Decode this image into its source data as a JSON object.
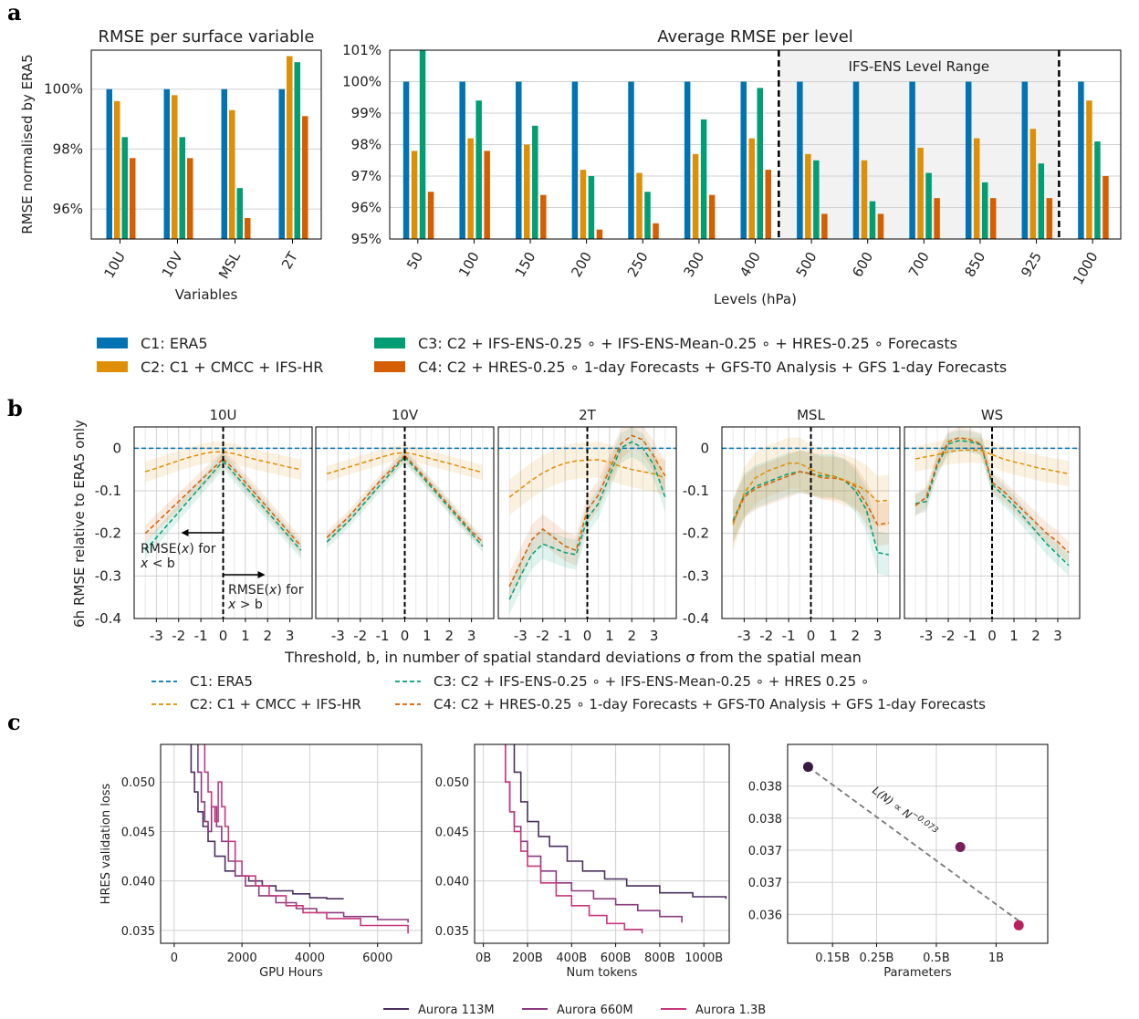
{
  "colors": {
    "C1": "#0173b2",
    "C2": "#de8f05",
    "C3": "#029e73",
    "C4": "#d55e00",
    "grid": "#d0d0d0",
    "band": "#f2f2f2",
    "a113": "#4a2f5e",
    "a660": "#8a3b7f",
    "a13": "#c7387c",
    "p1": "#3a1a45",
    "p2": "#7b1f5a",
    "p3": "#b8215d"
  },
  "panel_labels": {
    "a": "a",
    "b": "b",
    "c": "c"
  },
  "legend_a": [
    {
      "key": "C1",
      "label": "C1: ERA5"
    },
    {
      "key": "C2",
      "label": "C2: C1 + CMCC + IFS-HR"
    },
    {
      "key": "C3",
      "label": "C3: C2 + IFS-ENS-0.25 ∘ + IFS-ENS-Mean-0.25 ∘ + HRES-0.25 ∘ Forecasts"
    },
    {
      "key": "C4",
      "label": "C4: C2 + HRES-0.25 ∘ 1-day Forecasts + GFS-T0 Analysis + GFS 1-day Forecasts"
    }
  ],
  "legend_b": [
    {
      "key": "C1",
      "label": "C1: ERA5"
    },
    {
      "key": "C2",
      "label": "C2: C1 + CMCC + IFS-HR"
    },
    {
      "key": "C3",
      "label": "C3: C2 + IFS-ENS-0.25 ∘ + IFS-ENS-Mean-0.25 ∘ + HRES 0.25 ∘"
    },
    {
      "key": "C4",
      "label": "C4: C2 + HRES-0.25 ∘ 1-day Forecasts + GFS-T0 Analysis + GFS 1-day Forecasts"
    }
  ],
  "legend_c": [
    {
      "key": "a113",
      "label": "Aurora 113M"
    },
    {
      "key": "a660",
      "label": "Aurora 660M"
    },
    {
      "key": "a13",
      "label": "Aurora 1.3B"
    }
  ],
  "chart_data": [
    {
      "id": "a1",
      "type": "bar",
      "title": "RMSE per surface variable",
      "xlabel": "Variables",
      "ylabel": "RMSE normalised by ERA5",
      "categories": [
        "10U",
        "10V",
        "MSL",
        "2T"
      ],
      "ylim": [
        95,
        101.3
      ],
      "yticks": [
        96,
        98,
        100
      ],
      "ytick_labels": [
        "96%",
        "98%",
        "100%"
      ],
      "series": [
        {
          "name": "C1: ERA5",
          "key": "C1",
          "values": [
            100,
            100,
            100,
            100
          ]
        },
        {
          "name": "C2: C1 + CMCC + IFS-HR",
          "key": "C2",
          "values": [
            99.6,
            99.8,
            99.3,
            101.1
          ]
        },
        {
          "name": "C3",
          "key": "C3",
          "values": [
            98.4,
            98.4,
            96.7,
            100.9
          ]
        },
        {
          "name": "C4",
          "key": "C4",
          "values": [
            97.7,
            97.7,
            95.7,
            99.1
          ]
        }
      ]
    },
    {
      "id": "a2",
      "type": "bar",
      "title": "Average RMSE per level",
      "xlabel": "Levels (hPa)",
      "categories": [
        "50",
        "100",
        "150",
        "200",
        "250",
        "300",
        "400",
        "500",
        "600",
        "700",
        "850",
        "925",
        "1000"
      ],
      "ylim": [
        95,
        101
      ],
      "yticks": [
        95,
        96,
        97,
        98,
        99,
        100,
        101
      ],
      "ytick_labels": [
        "95%",
        "96%",
        "97%",
        "98%",
        "99%",
        "100%",
        "101%"
      ],
      "band": {
        "from_index": 7,
        "to_index": 11,
        "label": "IFS-ENS Level Range"
      },
      "series": [
        {
          "key": "C1",
          "values": [
            100,
            100,
            100,
            100,
            100,
            100,
            100,
            100,
            100,
            100,
            100,
            100,
            100
          ]
        },
        {
          "key": "C2",
          "values": [
            97.8,
            98.2,
            98.0,
            97.2,
            97.1,
            97.7,
            98.2,
            97.7,
            97.5,
            97.9,
            98.2,
            98.5,
            99.4
          ]
        },
        {
          "key": "C3",
          "values": [
            101.1,
            99.4,
            98.6,
            97.0,
            96.5,
            98.8,
            99.8,
            97.5,
            96.2,
            97.1,
            96.8,
            97.4,
            98.1
          ]
        },
        {
          "key": "C4",
          "values": [
            96.5,
            97.8,
            96.4,
            95.3,
            95.5,
            96.4,
            97.2,
            95.8,
            95.8,
            96.3,
            96.3,
            96.3,
            97.0
          ]
        }
      ]
    },
    {
      "id": "b",
      "type": "line",
      "ylabel": "6h RMSE relative to ERA5 only",
      "xlabel": "Threshold, b, in number of spatial standard deviations σ from the spatial mean",
      "x": [
        -3.5,
        -3,
        -2.5,
        -2,
        -1.5,
        -1,
        -0.5,
        0,
        0.5,
        1,
        1.5,
        2,
        2.5,
        3,
        3.5
      ],
      "xlim": [
        -4,
        4
      ],
      "xticks": [
        -3,
        -2,
        -1,
        0,
        1,
        2,
        3
      ],
      "xtick_labels": [
        "-3",
        "-2",
        "-1",
        "0",
        "1",
        "2",
        "3"
      ],
      "ylim": [
        -0.4,
        0.05
      ],
      "yticks": [
        0,
        -0.1,
        -0.2,
        -0.3,
        -0.4
      ],
      "ytick_labels": [
        "0",
        "-0.1",
        "-0.2",
        "-0.3",
        "-0.4"
      ],
      "annotations": {
        "left": [
          "RMSE(",
          "x",
          ") for",
          "x",
          " < b"
        ],
        "right": [
          "RMSE(",
          "x",
          ") for",
          "x",
          " > b"
        ]
      },
      "panels": [
        {
          "title": "10U",
          "C2": [
            -0.055,
            -0.047,
            -0.038,
            -0.029,
            -0.021,
            -0.014,
            -0.009,
            -0.008,
            -0.013,
            -0.02,
            -0.027,
            -0.033,
            -0.039,
            -0.045,
            -0.05
          ],
          "C3": [
            -0.24,
            -0.21,
            -0.18,
            -0.15,
            -0.12,
            -0.09,
            -0.06,
            -0.03,
            -0.06,
            -0.09,
            -0.12,
            -0.15,
            -0.18,
            -0.21,
            -0.24
          ],
          "C4": [
            -0.2,
            -0.175,
            -0.15,
            -0.125,
            -0.1,
            -0.075,
            -0.05,
            -0.025,
            -0.05,
            -0.08,
            -0.11,
            -0.14,
            -0.17,
            -0.2,
            -0.23
          ],
          "band_w": 0.02
        },
        {
          "title": "10V",
          "C2": [
            -0.06,
            -0.052,
            -0.044,
            -0.036,
            -0.028,
            -0.02,
            -0.013,
            -0.01,
            -0.015,
            -0.022,
            -0.029,
            -0.036,
            -0.043,
            -0.05,
            -0.057
          ],
          "C3": [
            -0.22,
            -0.195,
            -0.17,
            -0.14,
            -0.11,
            -0.08,
            -0.05,
            -0.02,
            -0.05,
            -0.08,
            -0.11,
            -0.14,
            -0.17,
            -0.2,
            -0.23
          ],
          "C4": [
            -0.21,
            -0.185,
            -0.16,
            -0.13,
            -0.1,
            -0.07,
            -0.045,
            -0.017,
            -0.045,
            -0.075,
            -0.105,
            -0.135,
            -0.165,
            -0.195,
            -0.22
          ],
          "band_w": 0.015
        },
        {
          "title": "2T",
          "C2": [
            -0.115,
            -0.095,
            -0.075,
            -0.058,
            -0.045,
            -0.035,
            -0.03,
            -0.028,
            -0.027,
            -0.033,
            -0.043,
            -0.05,
            -0.055,
            -0.06,
            -0.07
          ],
          "C3": [
            -0.355,
            -0.3,
            -0.25,
            -0.225,
            -0.235,
            -0.245,
            -0.25,
            -0.165,
            -0.13,
            -0.065,
            0.0,
            0.015,
            0.0,
            -0.04,
            -0.115
          ],
          "C4": [
            -0.325,
            -0.27,
            -0.215,
            -0.19,
            -0.21,
            -0.23,
            -0.24,
            -0.145,
            -0.11,
            -0.05,
            0.01,
            0.03,
            0.02,
            -0.02,
            -0.065
          ],
          "band_w": 0.035
        },
        {
          "title": "MSL",
          "C2": [
            -0.18,
            -0.105,
            -0.07,
            -0.055,
            -0.045,
            -0.035,
            -0.035,
            -0.05,
            -0.06,
            -0.065,
            -0.075,
            -0.085,
            -0.1,
            -0.125,
            -0.122
          ],
          "C3": [
            -0.17,
            -0.11,
            -0.09,
            -0.08,
            -0.07,
            -0.06,
            -0.055,
            -0.06,
            -0.065,
            -0.065,
            -0.075,
            -0.1,
            -0.145,
            -0.245,
            -0.25
          ],
          "C4": [
            -0.175,
            -0.115,
            -0.095,
            -0.085,
            -0.075,
            -0.065,
            -0.055,
            -0.06,
            -0.07,
            -0.07,
            -0.075,
            -0.09,
            -0.13,
            -0.18,
            -0.175
          ],
          "band_w": 0.05
        },
        {
          "title": "WS",
          "C2": [
            -0.025,
            -0.02,
            -0.015,
            -0.008,
            -0.005,
            -0.004,
            -0.005,
            -0.015,
            -0.025,
            -0.032,
            -0.038,
            -0.045,
            -0.05,
            -0.055,
            -0.06
          ],
          "C3": [
            -0.13,
            -0.125,
            -0.04,
            0.01,
            0.018,
            0.015,
            0.008,
            -0.085,
            -0.11,
            -0.135,
            -0.165,
            -0.195,
            -0.225,
            -0.25,
            -0.275
          ],
          "C4": [
            -0.135,
            -0.115,
            -0.035,
            0.015,
            0.025,
            0.02,
            0.01,
            -0.08,
            -0.1,
            -0.125,
            -0.15,
            -0.175,
            -0.2,
            -0.22,
            -0.245
          ],
          "band_w": 0.025
        }
      ]
    },
    {
      "id": "c1",
      "type": "line",
      "xlabel": "GPU Hours",
      "ylabel": "HRES validation loss",
      "xlim": [
        -400,
        7300
      ],
      "ylim": [
        0.0337,
        0.0538
      ],
      "xticks": [
        0,
        2000,
        4000,
        6000
      ],
      "xtick_labels": [
        "0",
        "2000",
        "4000",
        "6000"
      ],
      "yticks": [
        0.035,
        0.04,
        0.045,
        0.05
      ],
      "ytick_labels": [
        "0.035",
        "0.040",
        "0.045",
        "0.050"
      ],
      "series": [
        {
          "name": "Aurora 113M",
          "key": "a113",
          "x": [
            430,
            500,
            600,
            700,
            850,
            1000,
            1200,
            1500,
            1800,
            2200,
            2600,
            3000,
            3500,
            4000,
            4500,
            5000
          ],
          "y": [
            0.054,
            0.051,
            0.049,
            0.047,
            0.0455,
            0.044,
            0.0425,
            0.041,
            0.0405,
            0.04,
            0.0395,
            0.039,
            0.0387,
            0.0383,
            0.0382,
            0.0382
          ]
        },
        {
          "name": "Aurora 660M",
          "key": "a660",
          "x": [
            600,
            700,
            800,
            900,
            1000,
            1100,
            1250,
            1400,
            1600,
            1800,
            2100,
            2500,
            3000,
            3600,
            4200,
            5000,
            6000,
            6900
          ],
          "y": [
            0.054,
            0.051,
            0.048,
            0.046,
            0.045,
            0.0475,
            0.0455,
            0.044,
            0.042,
            0.0405,
            0.0395,
            0.0385,
            0.0378,
            0.0372,
            0.0368,
            0.0364,
            0.0361,
            0.0358
          ]
        },
        {
          "name": "Aurora 1.3B",
          "key": "a13",
          "x": [
            800,
            900,
            1000,
            1100,
            1200,
            1300,
            1400,
            1500,
            1600,
            1800,
            2000,
            2400,
            2800,
            3300,
            3800,
            4500,
            5500,
            6900
          ],
          "y": [
            0.054,
            0.051,
            0.049,
            0.0475,
            0.046,
            0.05,
            0.0475,
            0.0455,
            0.044,
            0.042,
            0.0405,
            0.0395,
            0.0385,
            0.0375,
            0.0368,
            0.0362,
            0.0355,
            0.0347
          ]
        }
      ]
    },
    {
      "id": "c2",
      "type": "line",
      "xlabel": "Num tokens",
      "xlim": [
        -40,
        1115
      ],
      "ylim": [
        0.0337,
        0.0538
      ],
      "xticks": [
        0,
        200,
        400,
        600,
        800,
        1000
      ],
      "xtick_labels": [
        "0B",
        "200B",
        "400B",
        "600B",
        "800B",
        "1000B"
      ],
      "yticks": [
        0.035,
        0.04,
        0.045,
        0.05
      ],
      "ytick_labels": [
        "0.035",
        "0.040",
        "0.045",
        "0.050"
      ],
      "series": [
        {
          "key": "a113",
          "x": [
            120,
            140,
            170,
            200,
            250,
            300,
            380,
            450,
            550,
            650,
            800,
            950,
            1100
          ],
          "y": [
            0.054,
            0.051,
            0.048,
            0.046,
            0.0445,
            0.0435,
            0.042,
            0.041,
            0.0402,
            0.0395,
            0.0388,
            0.0384,
            0.0382
          ]
        },
        {
          "key": "a660",
          "x": [
            80,
            100,
            120,
            140,
            170,
            200,
            260,
            330,
            400,
            500,
            600,
            700,
            800,
            900
          ],
          "y": [
            0.054,
            0.05,
            0.047,
            0.0455,
            0.044,
            0.0425,
            0.041,
            0.0398,
            0.039,
            0.0382,
            0.0376,
            0.037,
            0.0364,
            0.0358
          ]
        },
        {
          "key": "a13",
          "x": [
            80,
            100,
            120,
            140,
            170,
            200,
            260,
            330,
            400,
            480,
            560,
            640,
            720
          ],
          "y": [
            0.054,
            0.05,
            0.047,
            0.045,
            0.043,
            0.0415,
            0.0398,
            0.0385,
            0.0375,
            0.0365,
            0.0357,
            0.0351,
            0.0347
          ]
        }
      ]
    },
    {
      "id": "c3",
      "type": "scatter",
      "xlabel": "Parameters",
      "xscale": "log",
      "xlim_log": [
        -1.05,
        0.26
      ],
      "ylim": [
        0.03555,
        0.03865
      ],
      "xticks": [
        0.15,
        0.25,
        0.5,
        1
      ],
      "xtick_labels": [
        "0.15B",
        "0.25B",
        "0.5B",
        "1B"
      ],
      "yticks": [
        0.036,
        0.0365,
        0.037,
        0.0375,
        0.038
      ],
      "ytick_labels": [
        "0.036",
        "0.037",
        "0.037",
        "0.038",
        "0.038"
      ],
      "points": [
        {
          "x": 0.113,
          "y": 0.0383,
          "key": "p1"
        },
        {
          "x": 0.66,
          "y": 0.03705,
          "key": "p2"
        },
        {
          "x": 1.3,
          "y": 0.03583,
          "key": "p3"
        }
      ],
      "fit": {
        "x": [
          0.113,
          1.3
        ],
        "y": [
          0.0383,
          0.0359
        ]
      },
      "annotation": [
        "L(N) ∝ N",
        "−0.073"
      ]
    }
  ]
}
